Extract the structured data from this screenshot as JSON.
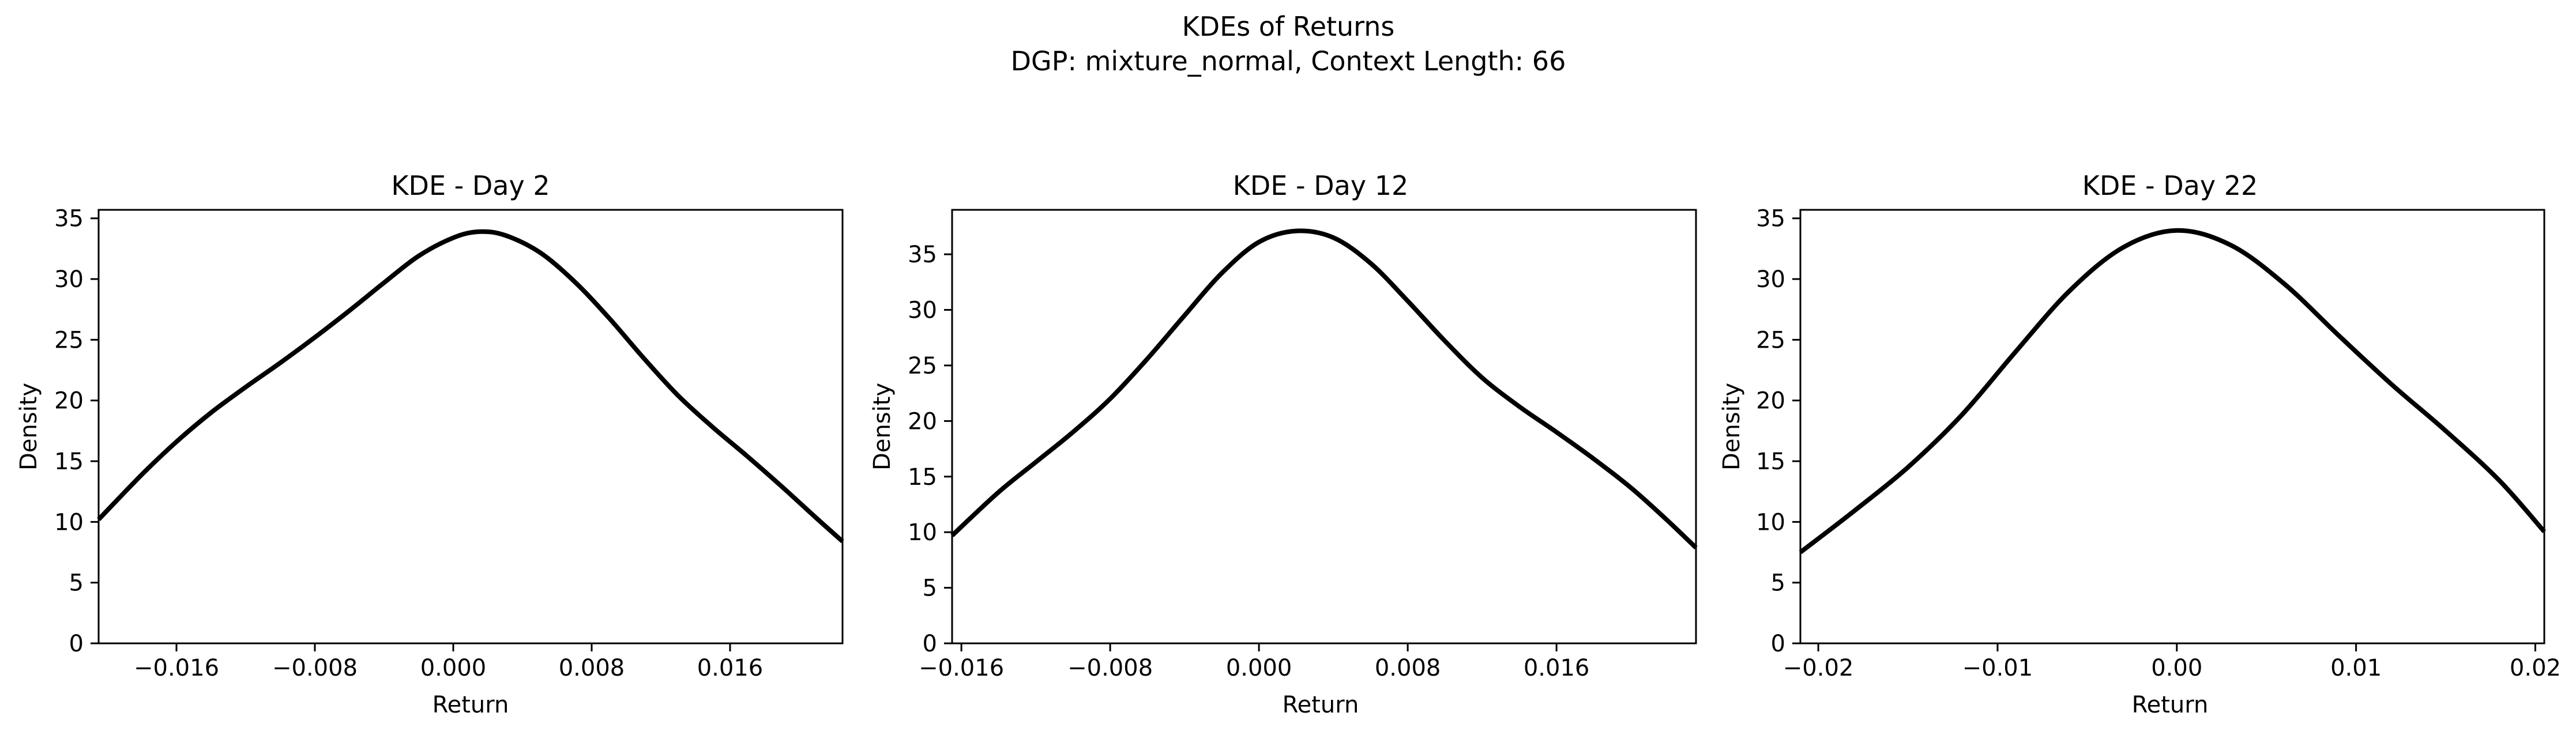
{
  "figure": {
    "title": "KDEs of Returns",
    "subtitle": "DGP: mixture_normal, Context Length: 66"
  },
  "chart_data": [
    {
      "type": "line",
      "title": "KDE - Day 2",
      "xlabel": "Return",
      "ylabel": "Density",
      "xlim": [
        -0.0205,
        0.0225
      ],
      "ylim": [
        0,
        35.7
      ],
      "xticks": [
        -0.016,
        -0.008,
        0.0,
        0.008,
        0.016
      ],
      "xtick_labels": [
        "−0.016",
        "−0.008",
        "0.000",
        "0.008",
        "0.016"
      ],
      "yticks": [
        0,
        5,
        10,
        15,
        20,
        25,
        30,
        35
      ],
      "ytick_labels": [
        "0",
        "5",
        "10",
        "15",
        "20",
        "25",
        "30",
        "35"
      ],
      "color": "#000000",
      "series": [
        {
          "x": [
            -0.0205,
            -0.018,
            -0.016,
            -0.014,
            -0.012,
            -0.01,
            -0.008,
            -0.006,
            -0.004,
            -0.002,
            0.0,
            0.0015,
            0.003,
            0.005,
            0.007,
            0.009,
            0.011,
            0.013,
            0.015,
            0.017,
            0.019,
            0.021,
            0.0225
          ],
          "y": [
            10.2,
            13.9,
            16.6,
            19.0,
            21.1,
            23.1,
            25.2,
            27.4,
            29.7,
            31.9,
            33.4,
            33.9,
            33.6,
            32.2,
            29.8,
            26.8,
            23.5,
            20.4,
            17.8,
            15.4,
            12.9,
            10.3,
            8.4
          ]
        }
      ]
    },
    {
      "type": "line",
      "title": "KDE - Day 12",
      "xlabel": "Return",
      "ylabel": "Density",
      "xlim": [
        -0.0165,
        0.0235
      ],
      "ylim": [
        0,
        39.0
      ],
      "xticks": [
        -0.016,
        -0.008,
        0.0,
        0.008,
        0.016
      ],
      "xtick_labels": [
        "−0.016",
        "−0.008",
        "0.000",
        "0.008",
        "0.016"
      ],
      "yticks": [
        0,
        5,
        10,
        15,
        20,
        25,
        30,
        35
      ],
      "ytick_labels": [
        "0",
        "5",
        "10",
        "15",
        "20",
        "25",
        "30",
        "35"
      ],
      "color": "#000000",
      "series": [
        {
          "x": [
            -0.0165,
            -0.014,
            -0.012,
            -0.01,
            -0.008,
            -0.006,
            -0.004,
            -0.002,
            0.0,
            0.002,
            0.004,
            0.006,
            0.008,
            0.01,
            0.012,
            0.014,
            0.016,
            0.018,
            0.02,
            0.022,
            0.0235
          ],
          "y": [
            9.7,
            13.6,
            16.3,
            19.0,
            22.0,
            25.6,
            29.5,
            33.3,
            36.1,
            37.1,
            36.5,
            34.2,
            30.8,
            27.2,
            23.9,
            21.3,
            19.0,
            16.6,
            14.0,
            11.0,
            8.6
          ]
        }
      ]
    },
    {
      "type": "line",
      "title": "KDE - Day 22",
      "xlabel": "Return",
      "ylabel": "Density",
      "xlim": [
        -0.021,
        0.0205
      ],
      "ylim": [
        0,
        35.7
      ],
      "xticks": [
        -0.02,
        -0.01,
        0.0,
        0.01,
        0.02
      ],
      "xtick_labels": [
        "−0.02",
        "−0.01",
        "0.00",
        "0.01",
        "0.02"
      ],
      "yticks": [
        0,
        5,
        10,
        15,
        20,
        25,
        30,
        35
      ],
      "ytick_labels": [
        "0",
        "5",
        "10",
        "15",
        "20",
        "25",
        "30",
        "35"
      ],
      "color": "#000000",
      "series": [
        {
          "x": [
            -0.021,
            -0.018,
            -0.015,
            -0.012,
            -0.009,
            -0.006,
            -0.003,
            0.0,
            0.003,
            0.006,
            0.009,
            0.012,
            0.015,
            0.018,
            0.0205
          ],
          "y": [
            7.5,
            10.9,
            14.5,
            18.8,
            24.0,
            29.0,
            32.6,
            34.0,
            32.8,
            29.6,
            25.4,
            21.3,
            17.5,
            13.4,
            9.2
          ]
        }
      ]
    }
  ]
}
